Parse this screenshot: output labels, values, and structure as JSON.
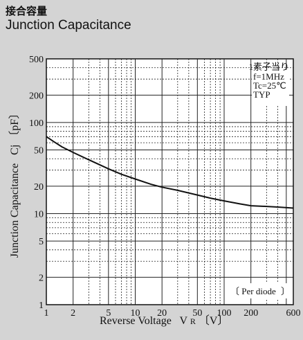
{
  "header": {
    "title_jp": "接合容量",
    "title_en": "Junction Capacitance"
  },
  "chart_data": {
    "type": "line",
    "title": "Junction Capacitance",
    "xlabel": "Reverse Voltage",
    "xlabel_symbol": "V",
    "xlabel_sub": "R",
    "xlabel_unit": "〔V〕",
    "ylabel": "Junction Capacitance",
    "ylabel_symbol": "Cj",
    "ylabel_unit": "〔pF〕",
    "x_scale": "log",
    "y_scale": "log",
    "xlim": [
      1,
      600
    ],
    "ylim": [
      1,
      500
    ],
    "x_ticks": [
      1,
      2,
      5,
      10,
      20,
      50,
      100,
      200,
      600
    ],
    "y_ticks": [
      1,
      2,
      5,
      10,
      20,
      50,
      100,
      200,
      500
    ],
    "grid": true,
    "note_top": "1素子当り",
    "conditions": [
      "f=1MHz",
      "Tc=25℃",
      "TYP"
    ],
    "annotation": "Per diode",
    "line_color": "#111111",
    "series": [
      {
        "x": [
          1,
          1.2,
          1.5,
          2,
          3,
          5,
          7,
          10,
          15,
          20,
          30,
          50,
          70,
          100,
          150,
          200,
          300,
          400,
          600
        ],
        "values": [
          70,
          62,
          54,
          47,
          39,
          31,
          27,
          24,
          21,
          19.5,
          18,
          16,
          14.8,
          13.8,
          12.8,
          12.2,
          12,
          11.8,
          11.5
        ]
      }
    ]
  }
}
